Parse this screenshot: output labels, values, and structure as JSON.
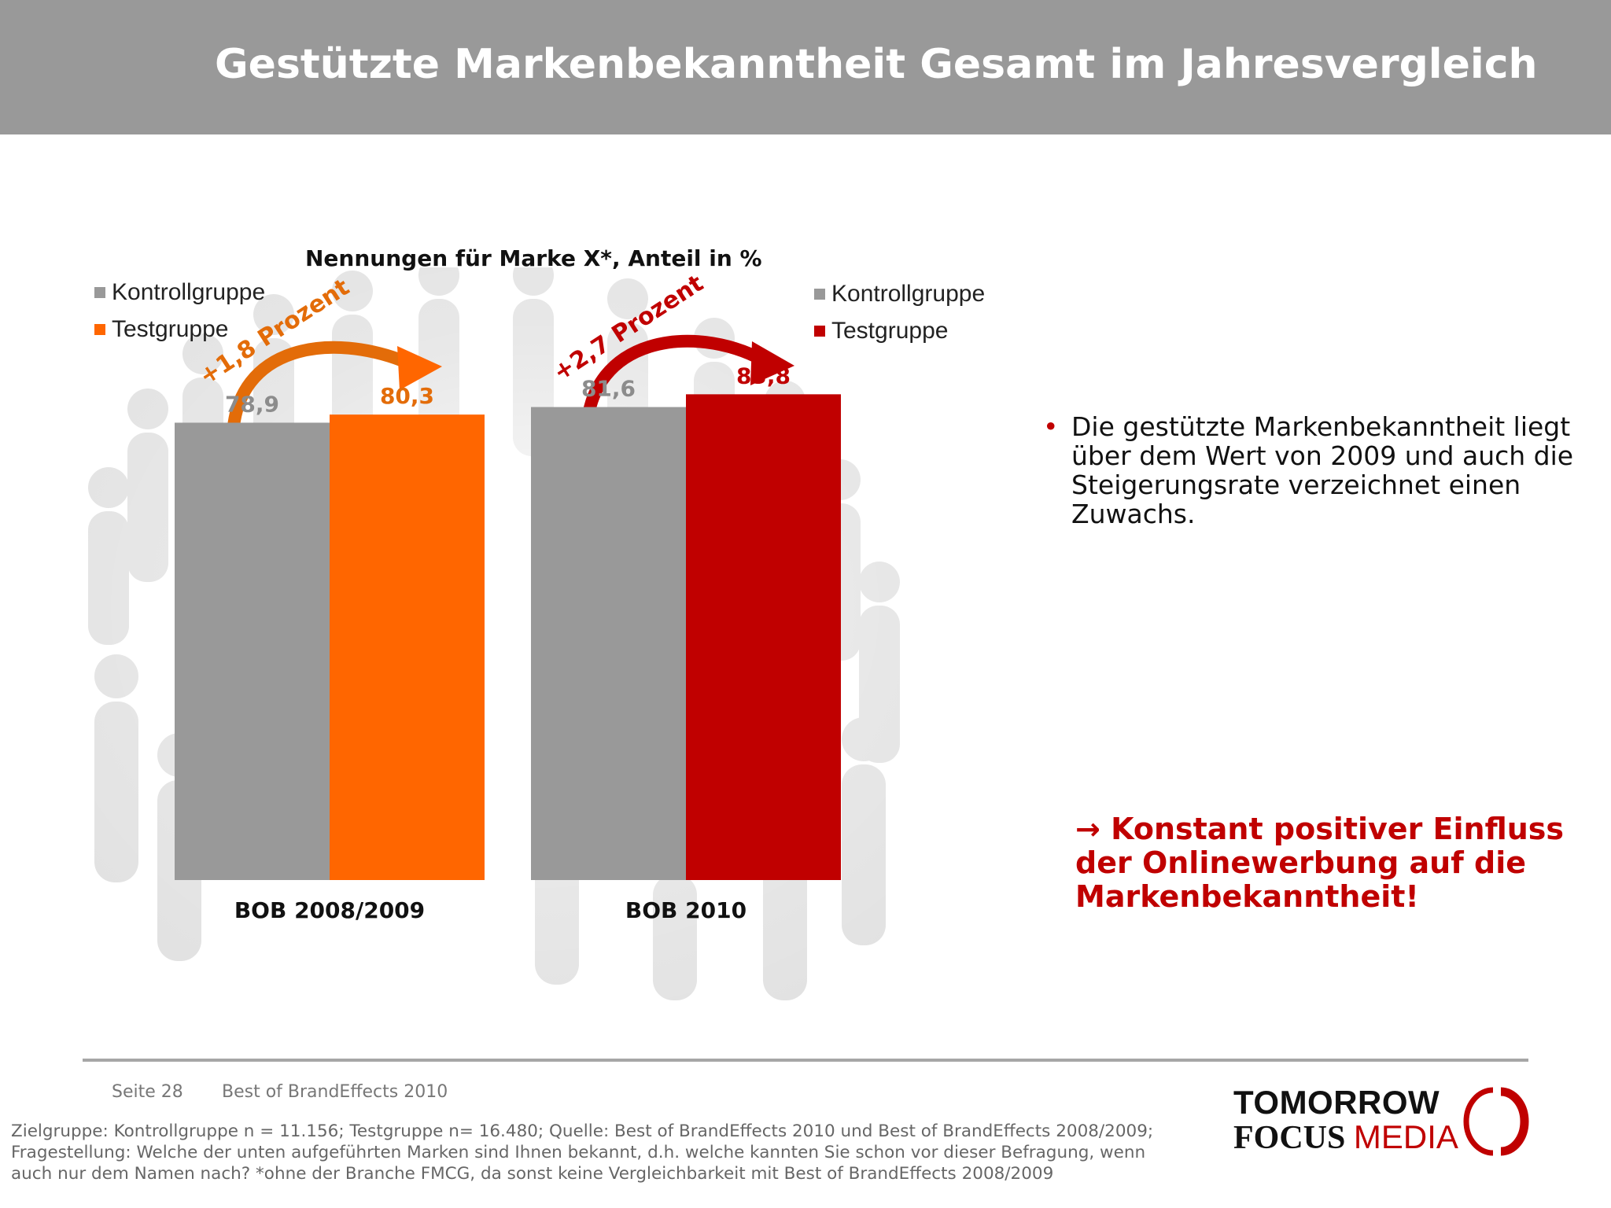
{
  "header": {
    "title": "Gestützte Markenbekanntheit Gesamt im Jahresvergleich"
  },
  "chart_data": {
    "type": "bar",
    "title": "Nennungen für Marke X*, Anteil in %",
    "ylim": [
      0,
      90
    ],
    "groups": [
      {
        "category": "BOB 2008/2009",
        "legend": [
          "Kontrollgruppe",
          "Testgruppe"
        ],
        "series": [
          {
            "name": "Kontrollgruppe",
            "value": 78.9,
            "label": "78,9",
            "color": "#999999",
            "label_color": "#8c8c8c"
          },
          {
            "name": "Testgruppe",
            "value": 80.3,
            "label": "80,3",
            "color": "#ff6600",
            "label_color": "#e36c09"
          }
        ],
        "annotation": {
          "text": "+1,8 Prozent",
          "color": "#e36c09"
        }
      },
      {
        "category": "BOB 2010",
        "legend": [
          "Kontrollgruppe",
          "Testgruppe"
        ],
        "series": [
          {
            "name": "Kontrollgruppe",
            "value": 81.6,
            "label": "81,6",
            "color": "#999999",
            "label_color": "#8c8c8c"
          },
          {
            "name": "Testgruppe",
            "value": 83.8,
            "label": "83,8",
            "color": "#c00000",
            "label_color": "#c00000"
          }
        ],
        "annotation": {
          "text": "+2,7 Prozent",
          "color": "#c00000"
        }
      }
    ]
  },
  "bullet": {
    "marker": "•",
    "text": "Die gestützte Markenbekanntheit liegt über dem Wert von 2009 und auch die Steigerungsrate verzeichnet einen Zuwachs."
  },
  "conclusion": {
    "text": "→ Konstant positiver Einfluss der Onlinewerbung auf die Markenbekanntheit!"
  },
  "footer": {
    "page": "Seite 28",
    "source": "Best of BrandEffects 2010",
    "note": "Zielgruppe: Kontrollgruppe n = 11.156; Testgruppe n= 16.480; Quelle: Best of BrandEffects 2010 und Best of BrandEffects 2008/2009; Fragestellung: Welche der unten aufgeführten Marken sind Ihnen bekannt, d.h. welche kannten Sie schon vor dieser Befragung, wenn auch nur dem Namen nach? *ohne der Branche FMCG, da sonst keine Vergleichbarkeit mit Best of BrandEffects 2008/2009"
  },
  "logo": {
    "line1": "TOMORROW",
    "line2a": "FOCUS",
    "line2b": "MEDIA"
  },
  "colors": {
    "header_bg": "#999999",
    "accent_red": "#c00000",
    "accent_orange": "#ff6600",
    "grey_bar": "#999999"
  }
}
